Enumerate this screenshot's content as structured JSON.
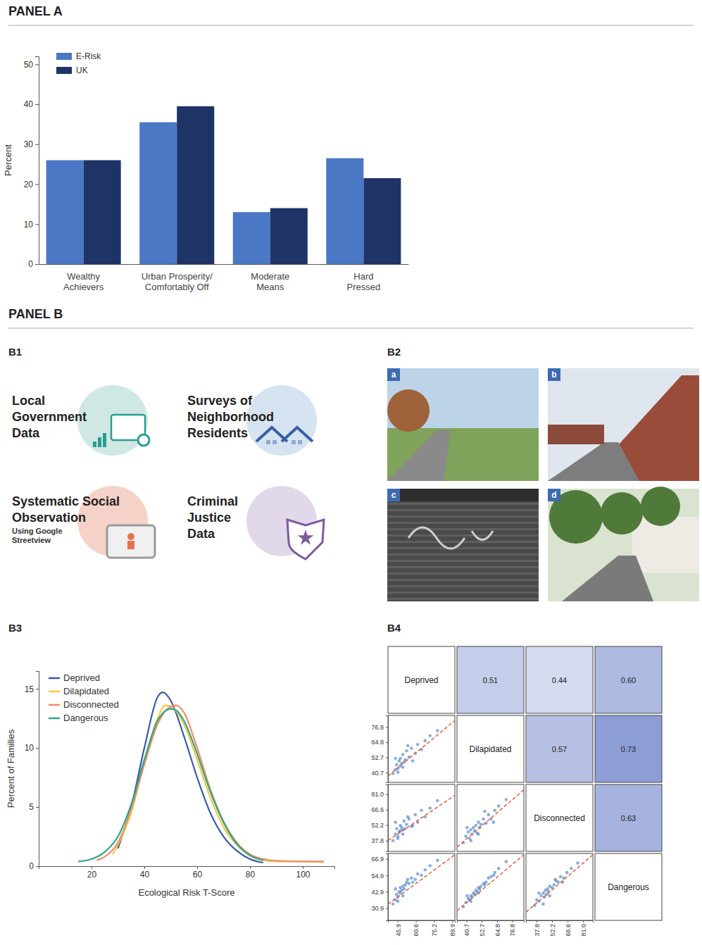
{
  "chart_data": [
    {
      "type": "bar",
      "title": "PANEL A",
      "categories": [
        "Wealthy Achievers",
        "Urban Prosperity/ Comfortably Off",
        "Moderate Means",
        "Hard Pressed"
      ],
      "series": [
        {
          "name": "E-Risk",
          "color": "#4b78c4",
          "values": [
            26,
            35.5,
            13,
            26.5
          ]
        },
        {
          "name": "UK",
          "color": "#1e3466",
          "values": [
            26,
            39.5,
            14,
            21.5
          ]
        }
      ],
      "ylabel": "Percent",
      "ylim": [
        0,
        52
      ],
      "yticks": [
        0,
        10,
        20,
        30,
        40,
        50
      ],
      "legend": "top-left",
      "grid": false
    },
    {
      "type": "line",
      "title": "B3",
      "xlabel": "Ecological Risk T-Score",
      "ylabel": "Percent of Families",
      "xlim": [
        0,
        112
      ],
      "xticks": [
        20,
        40,
        60,
        80,
        100
      ],
      "ylim": [
        0,
        16.5
      ],
      "yticks": [
        0,
        5,
        10,
        15
      ],
      "legend": "top-left",
      "grid": false,
      "series": [
        {
          "name": "Deprived",
          "color": "#3b5ba5",
          "x": [
            30,
            35,
            40,
            45,
            47,
            50,
            55,
            60,
            65,
            70,
            75,
            80,
            85
          ],
          "values": [
            1.5,
            5,
            10,
            14.3,
            14.7,
            14,
            11,
            7.5,
            4.5,
            2.5,
            1.3,
            0.6,
            0.3
          ]
        },
        {
          "name": "Dilapidated",
          "color": "#f5c842",
          "x": [
            28,
            30,
            35,
            40,
            45,
            48,
            50,
            55,
            60,
            65,
            70,
            75,
            80,
            85,
            90,
            100,
            108
          ],
          "values": [
            1,
            1.8,
            4.5,
            8.8,
            12.5,
            13.6,
            13.5,
            12,
            9,
            5.8,
            3.3,
            1.8,
            0.9,
            0.5,
            0.4,
            0.4,
            0.35
          ]
        },
        {
          "name": "Disconnected",
          "color": "#f08c6a",
          "x": [
            22,
            25,
            30,
            35,
            40,
            45,
            50,
            52,
            55,
            60,
            65,
            70,
            75,
            80,
            85,
            90,
            100,
            108
          ],
          "values": [
            0.5,
            0.8,
            2,
            4.8,
            8.6,
            12,
            13.5,
            13.6,
            13,
            10,
            6.5,
            3.8,
            2,
            1,
            0.6,
            0.45,
            0.4,
            0.4
          ]
        },
        {
          "name": "Dangerous",
          "color": "#2aa68a",
          "x": [
            15,
            20,
            25,
            30,
            35,
            40,
            45,
            50,
            52,
            55,
            60,
            65,
            70,
            75,
            80,
            85
          ],
          "values": [
            0.4,
            0.6,
            1.2,
            2.5,
            5.2,
            9,
            12.3,
            13.3,
            13.2,
            12.3,
            9.5,
            6.3,
            3.7,
            1.9,
            0.9,
            0.5
          ]
        }
      ]
    },
    {
      "type": "scatter_matrix",
      "title": "B4",
      "color": "#3f78bf",
      "variables": [
        {
          "name": "Deprived",
          "lim": [
            38,
            92
          ],
          "ticks": [
            45.9,
            60.6,
            75.2,
            89.9
          ]
        },
        {
          "name": "Dilapidated",
          "lim": [
            33,
            86
          ],
          "ticks": [
            40.7,
            52.7,
            64.8,
            76.8
          ]
        },
        {
          "name": "Disconnected",
          "lim": [
            28,
            90
          ],
          "ticks": [
            37.8,
            52.2,
            66.6,
            {
              "value": 81,
              "label": "81.0"
            }
          ]
        },
        {
          "name": "Dangerous",
          "lim": [
            22,
            71
          ],
          "ticks": [
            30.9,
            42.9,
            54.9,
            66.9
          ]
        }
      ],
      "cells": [
        {
          "x_name": "Deprived",
          "y_name": "Dilapidated",
          "x": [
            42,
            44,
            45,
            46,
            47,
            48,
            48,
            49,
            50,
            51,
            52,
            53,
            55,
            57,
            60,
            62,
            65,
            68,
            72,
            78,
            44,
            46,
            50,
            54,
            58
          ],
          "values": [
            40,
            43,
            47,
            44,
            50,
            46,
            52,
            48,
            55,
            49,
            51,
            58,
            53,
            60,
            56,
            63,
            59,
            66,
            70,
            74,
            52,
            41,
            45,
            62,
            50
          ],
          "fit_x": [
            38,
            92
          ],
          "fit_y": [
            38,
            82
          ]
        },
        {
          "x_name": "Deprived",
          "y_name": "Disconnected",
          "x": [
            42,
            44,
            45,
            46,
            47,
            48,
            48,
            49,
            50,
            51,
            52,
            53,
            55,
            57,
            60,
            62,
            65,
            68,
            72,
            78,
            44,
            46,
            50,
            54,
            58
          ],
          "values": [
            38,
            44,
            49,
            42,
            46,
            52,
            47,
            50,
            44,
            56,
            49,
            53,
            58,
            51,
            62,
            55,
            66,
            60,
            68,
            75,
            55,
            40,
            48,
            60,
            52
          ],
          "fit_x": [
            38,
            92
          ],
          "fit_y": [
            38,
            80
          ]
        },
        {
          "x_name": "Dilapidated",
          "y_name": "Disconnected",
          "x": [
            38,
            40,
            42,
            43,
            44,
            45,
            46,
            47,
            48,
            49,
            50,
            51,
            52,
            54,
            56,
            58,
            60,
            63,
            66,
            72,
            41,
            44,
            50,
            55,
            62
          ],
          "values": [
            36,
            42,
            46,
            40,
            48,
            44,
            50,
            47,
            52,
            45,
            55,
            50,
            53,
            58,
            54,
            62,
            58,
            66,
            70,
            76,
            50,
            38,
            44,
            65,
            55
          ],
          "fit_x": [
            33,
            86
          ],
          "fit_y": [
            32,
            85
          ]
        },
        {
          "x_name": "Deprived",
          "y_name": "Dangerous",
          "x": [
            42,
            44,
            45,
            46,
            47,
            48,
            48,
            49,
            50,
            51,
            52,
            53,
            55,
            57,
            60,
            62,
            65,
            68,
            72,
            78,
            44,
            46,
            50,
            54,
            58
          ],
          "values": [
            34,
            37,
            41,
            39,
            43,
            42,
            46,
            44,
            47,
            45,
            48,
            50,
            49,
            53,
            52,
            56,
            55,
            59,
            62,
            66,
            45,
            36,
            40,
            52,
            50
          ],
          "fit_x": [
            38,
            92
          ],
          "fit_y": [
            34,
            70
          ]
        },
        {
          "x_name": "Dilapidated",
          "y_name": "Dangerous",
          "x": [
            38,
            40,
            42,
            43,
            44,
            45,
            46,
            47,
            48,
            49,
            50,
            51,
            52,
            54,
            56,
            58,
            60,
            63,
            66,
            72,
            41,
            44,
            50,
            55,
            62
          ],
          "values": [
            32,
            35,
            38,
            37,
            40,
            39,
            42,
            41,
            44,
            43,
            46,
            45,
            47,
            49,
            50,
            53,
            54,
            57,
            60,
            65,
            40,
            36,
            42,
            48,
            55
          ],
          "fit_x": [
            33,
            86
          ],
          "fit_y": [
            29,
            70
          ]
        },
        {
          "x_name": "Disconnected",
          "y_name": "Dangerous",
          "x": [
            36,
            38,
            40,
            42,
            44,
            45,
            46,
            47,
            48,
            49,
            50,
            52,
            54,
            56,
            58,
            60,
            63,
            66,
            70,
            76,
            40,
            44,
            50,
            55,
            62
          ],
          "values": [
            33,
            37,
            36,
            40,
            42,
            39,
            44,
            41,
            45,
            43,
            47,
            46,
            48,
            51,
            50,
            54,
            53,
            57,
            60,
            64,
            42,
            34,
            40,
            52,
            50
          ],
          "fit_x": [
            28,
            90
          ],
          "fit_y": [
            28,
            70
          ]
        }
      ],
      "correlations": {
        "y_names": [
          "Deprived",
          "Deprived",
          "Deprived",
          "Dilapidated",
          "Dilapidated",
          "Disconnected"
        ],
        "x_names": [
          "Dilapidated",
          "Disconnected",
          "Dangerous",
          "Disconnected",
          "Dangerous",
          "Dangerous"
        ],
        "values": [
          0.51,
          0.44,
          0.6,
          0.57,
          0.73,
          0.63
        ],
        "value_labels": [
          "0.51",
          "0.44",
          "0.60",
          "0.57",
          "0.73",
          "0.63"
        ]
      }
    }
  ],
  "panel_b": {
    "title": "PANEL B",
    "b1": {
      "title": "B1",
      "items": [
        {
          "lines": [
            "Local",
            "Government",
            "Data"
          ]
        },
        {
          "lines": [
            "Surveys of",
            "Neighborhood",
            "Residents"
          ]
        },
        {
          "lines": [
            "Systematic Social",
            "Observation"
          ],
          "subtitle": [
            "Using Google",
            "Streetview"
          ]
        },
        {
          "lines": [
            "Criminal",
            "Justice",
            "Data"
          ]
        }
      ]
    },
    "b2": {
      "title": "B2",
      "images": [
        "a",
        "b",
        "c",
        "d"
      ]
    }
  }
}
